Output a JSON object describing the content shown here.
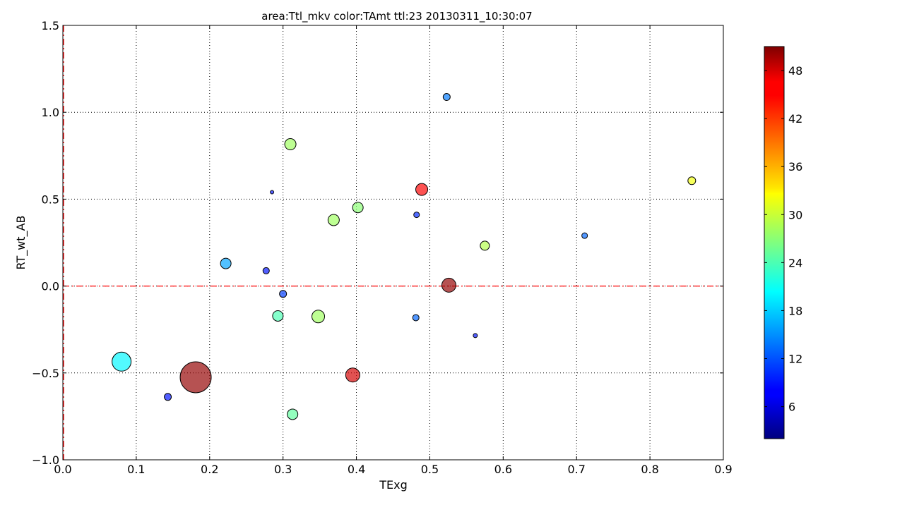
{
  "chart_data": {
    "type": "scatter",
    "title": "area:Ttl_mkv  color:TAmt  ttl:23  20130311_10:30:07",
    "xlabel": "TExg",
    "ylabel": "RT_wt_AB",
    "xlim": [
      0.0,
      0.9
    ],
    "ylim": [
      -1.0,
      1.5
    ],
    "xticks": [
      "0.0",
      "0.1",
      "0.2",
      "0.3",
      "0.4",
      "0.5",
      "0.6",
      "0.7",
      "0.8",
      "0.9"
    ],
    "yticks": [
      "−1.0",
      "−0.5",
      "0.0",
      "0.5",
      "1.0",
      "1.5"
    ],
    "grid": true,
    "reference_lines": [
      {
        "orientation": "horizontal",
        "value": 0.0,
        "color": "#ff0000",
        "style": "dash-dot"
      },
      {
        "orientation": "vertical",
        "value": 0.0,
        "color": "#ff0000",
        "style": "dash-dot"
      }
    ],
    "size_encoding": "Ttl_mkv",
    "color_encoding": "TAmt",
    "colormap": "jet",
    "colorbar": {
      "range": [
        2,
        51
      ],
      "ticks": [
        "6",
        "12",
        "18",
        "24",
        "30",
        "36",
        "42",
        "48"
      ]
    },
    "points": [
      {
        "x": 0.08,
        "y": -0.435,
        "size": 13.5,
        "color_value": 20
      },
      {
        "x": 0.181,
        "y": -0.525,
        "size": 22.0,
        "color_value": 50
      },
      {
        "x": 0.143,
        "y": -0.638,
        "size": 5.0,
        "color_value": 9
      },
      {
        "x": 0.222,
        "y": 0.13,
        "size": 7.5,
        "color_value": 16
      },
      {
        "x": 0.277,
        "y": 0.088,
        "size": 4.5,
        "color_value": 9
      },
      {
        "x": 0.285,
        "y": 0.54,
        "size": 2.5,
        "color_value": 9
      },
      {
        "x": 0.3,
        "y": -0.045,
        "size": 5.0,
        "color_value": 11
      },
      {
        "x": 0.293,
        "y": -0.172,
        "size": 7.5,
        "color_value": 24
      },
      {
        "x": 0.31,
        "y": 0.816,
        "size": 8.0,
        "color_value": 28
      },
      {
        "x": 0.313,
        "y": -0.738,
        "size": 7.5,
        "color_value": 25
      },
      {
        "x": 0.348,
        "y": -0.175,
        "size": 9.0,
        "color_value": 28
      },
      {
        "x": 0.369,
        "y": 0.38,
        "size": 8.0,
        "color_value": 28
      },
      {
        "x": 0.395,
        "y": -0.512,
        "size": 10.0,
        "color_value": 47
      },
      {
        "x": 0.402,
        "y": 0.452,
        "size": 7.5,
        "color_value": 27
      },
      {
        "x": 0.481,
        "y": -0.182,
        "size": 4.5,
        "color_value": 13
      },
      {
        "x": 0.482,
        "y": 0.41,
        "size": 4.0,
        "color_value": 10
      },
      {
        "x": 0.489,
        "y": 0.556,
        "size": 8.5,
        "color_value": 45
      },
      {
        "x": 0.523,
        "y": 1.088,
        "size": 5.0,
        "color_value": 14
      },
      {
        "x": 0.526,
        "y": 0.005,
        "size": 10.0,
        "color_value": 50
      },
      {
        "x": 0.562,
        "y": -0.285,
        "size": 3.0,
        "color_value": 9
      },
      {
        "x": 0.575,
        "y": 0.232,
        "size": 6.5,
        "color_value": 29
      },
      {
        "x": 0.711,
        "y": 0.29,
        "size": 4.0,
        "color_value": 13
      },
      {
        "x": 0.857,
        "y": 0.606,
        "size": 5.5,
        "color_value": 32
      }
    ]
  }
}
